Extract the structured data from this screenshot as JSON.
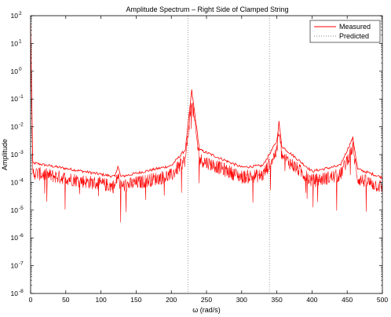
{
  "chart_data": {
    "type": "line",
    "title": "Amplitude Spectrum – Right Side of Clamped String",
    "xlabel": "ω (rad/s)",
    "ylabel": "Amplitude",
    "xlim": [
      0,
      500
    ],
    "ylim": [
      1e-08,
      100
    ],
    "yscale": "log",
    "grid": false,
    "legend_position": "top-right",
    "x_ticks": [
      0,
      50,
      100,
      150,
      200,
      250,
      300,
      350,
      400,
      450,
      500
    ],
    "y_ticks": [
      {
        "base": "10",
        "exp": "2"
      },
      {
        "base": "10",
        "exp": "1"
      },
      {
        "base": "10",
        "exp": "0"
      },
      {
        "base": "10",
        "exp": "-1"
      },
      {
        "base": "10",
        "exp": "-2"
      },
      {
        "base": "10",
        "exp": "-3"
      },
      {
        "base": "10",
        "exp": "-4"
      },
      {
        "base": "10",
        "exp": "-5"
      },
      {
        "base": "10",
        "exp": "-6"
      },
      {
        "base": "10",
        "exp": "-7"
      },
      {
        "base": "10",
        "exp": "-8"
      }
    ],
    "series": [
      {
        "name": "Measured",
        "color": "#ff0000",
        "style": "solid",
        "description_points": [
          {
            "x": 0,
            "y": 50
          },
          {
            "x": 3,
            "y": 0.0005
          },
          {
            "x": 120,
            "y": 0.00016
          },
          {
            "x": 124,
            "y": 0.0004
          },
          {
            "x": 128,
            "y": 0.00016
          },
          {
            "x": 200,
            "y": 0.0004
          },
          {
            "x": 220,
            "y": 0.0015
          },
          {
            "x": 229,
            "y": 0.2
          },
          {
            "x": 240,
            "y": 0.0015
          },
          {
            "x": 300,
            "y": 0.00035
          },
          {
            "x": 330,
            "y": 0.0004
          },
          {
            "x": 350,
            "y": 0.003
          },
          {
            "x": 353,
            "y": 0.015
          },
          {
            "x": 357,
            "y": 0.002
          },
          {
            "x": 400,
            "y": 0.00025
          },
          {
            "x": 440,
            "y": 0.0004
          },
          {
            "x": 458,
            "y": 0.004
          },
          {
            "x": 465,
            "y": 0.0003
          },
          {
            "x": 500,
            "y": 0.00015
          }
        ],
        "notes": "noisy upper and lower envelope traces around the resonances"
      },
      {
        "name": "Predicted",
        "color": "#808080",
        "style": "dotted",
        "vertical_lines_x": [
          223.5,
          339.5
        ]
      }
    ]
  }
}
